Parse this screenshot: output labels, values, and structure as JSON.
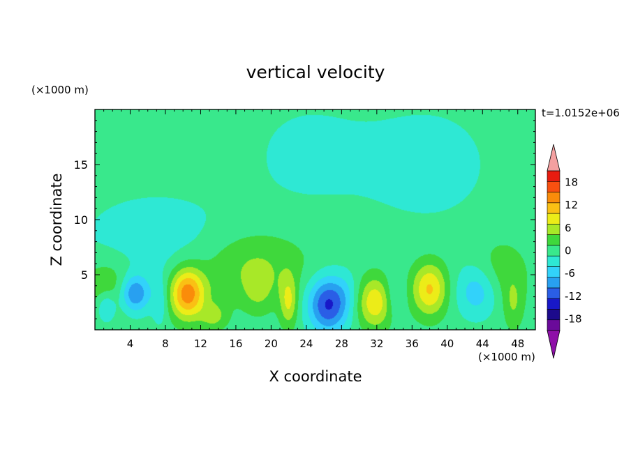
{
  "chart_data": {
    "type": "heatmap",
    "title": "vertical velocity",
    "xlabel": "X coordinate",
    "ylabel": "Z coordinate",
    "x_unit": "(×1000 m)",
    "y_unit": "(×1000 m)",
    "time_label": "t=1.0152e+06",
    "xlim": [
      0,
      50
    ],
    "ylim": [
      0,
      20
    ],
    "x_ticks": [
      "4",
      "8",
      "12",
      "16",
      "20",
      "24",
      "28",
      "32",
      "36",
      "40",
      "44",
      "48"
    ],
    "y_ticks": [
      "5",
      "10",
      "15"
    ],
    "colorbar": {
      "levels": [
        -21,
        -18,
        -15,
        -12,
        -9,
        -6,
        -3,
        0,
        3,
        6,
        9,
        12,
        15,
        18,
        21
      ],
      "tick_labels": [
        "18",
        "12",
        "6",
        "0",
        "-6",
        "-12",
        "-18"
      ],
      "colors": [
        "#6a0a9a",
        "#1c0a8c",
        "#1818c8",
        "#2a5ee6",
        "#28a0f0",
        "#32d2fa",
        "#2ee8d4",
        "#39e88c",
        "#3fd83c",
        "#a8e828",
        "#ecec18",
        "#fac014",
        "#fa8c0a",
        "#f85010",
        "#e81c10"
      ],
      "extend_colors": {
        "below": "#8e10a8",
        "above": "#f4a0a0"
      }
    },
    "background_value": 1.5,
    "features": [
      {
        "x": 6.9,
        "z": 8.1,
        "sx": 9.5,
        "sz": 4.7,
        "value": -3
      },
      {
        "x": 18.0,
        "z": 6.0,
        "sx": 6,
        "sz": 3,
        "value": 5
      },
      {
        "x": 24.0,
        "z": 16.0,
        "sx": 8,
        "sz": 6,
        "value": -2
      },
      {
        "x": 38.0,
        "z": 15.0,
        "sx": 8,
        "sz": 6,
        "value": -2.5
      },
      {
        "x": 46.0,
        "z": 5.0,
        "sx": 3,
        "sz": 3,
        "value": 4
      },
      {
        "x": 1.5,
        "z": 4.0,
        "sx": 3.3,
        "sz": 2.5,
        "value": 5
      },
      {
        "x": 10.5,
        "z": 3.3,
        "sx": 2.0,
        "sz": 2.3,
        "value": 16
      },
      {
        "x": 14.2,
        "z": 3.5,
        "sx": 2.0,
        "sz": 2.3,
        "value": 1.5
      },
      {
        "x": 4.5,
        "z": 3.3,
        "sx": 1.7,
        "sz": 1.7,
        "value": -11
      },
      {
        "x": 18.5,
        "z": 3.4,
        "sx": 1.9,
        "sz": 2.0,
        "value": 4
      },
      {
        "x": 13.5,
        "z": 1.2,
        "sx": 1.5,
        "sz": 1.2,
        "value": 5
      },
      {
        "x": 22.0,
        "z": 2.6,
        "sx": 1.0,
        "sz": 2.3,
        "value": 8
      },
      {
        "x": 26.5,
        "z": 2.3,
        "sx": 2.3,
        "sz": 2.5,
        "value": -14
      },
      {
        "x": 28.8,
        "z": 3.5,
        "sx": 1.5,
        "sz": 2.0,
        "value": -2
      },
      {
        "x": 31.8,
        "z": 2.5,
        "sx": 2.1,
        "sz": 2.3,
        "value": 10
      },
      {
        "x": 34.0,
        "z": 3.0,
        "sx": 1.2,
        "sz": 2.0,
        "value": -4
      },
      {
        "x": 38.0,
        "z": 3.7,
        "sx": 2.0,
        "sz": 2.4,
        "value": 11
      },
      {
        "x": 43.5,
        "z": 3.5,
        "sx": 2.5,
        "sz": 2.4,
        "value": -7
      },
      {
        "x": 47.5,
        "z": 2.3,
        "sx": 1.1,
        "sz": 2.3,
        "value": 4
      },
      {
        "x": 1.3,
        "z": 2.1,
        "sx": 1.1,
        "sz": 1.4,
        "value": -6
      },
      {
        "x": 7.4,
        "z": 2.6,
        "sx": 0.9,
        "sz": 2.2,
        "value": -4
      }
    ]
  }
}
